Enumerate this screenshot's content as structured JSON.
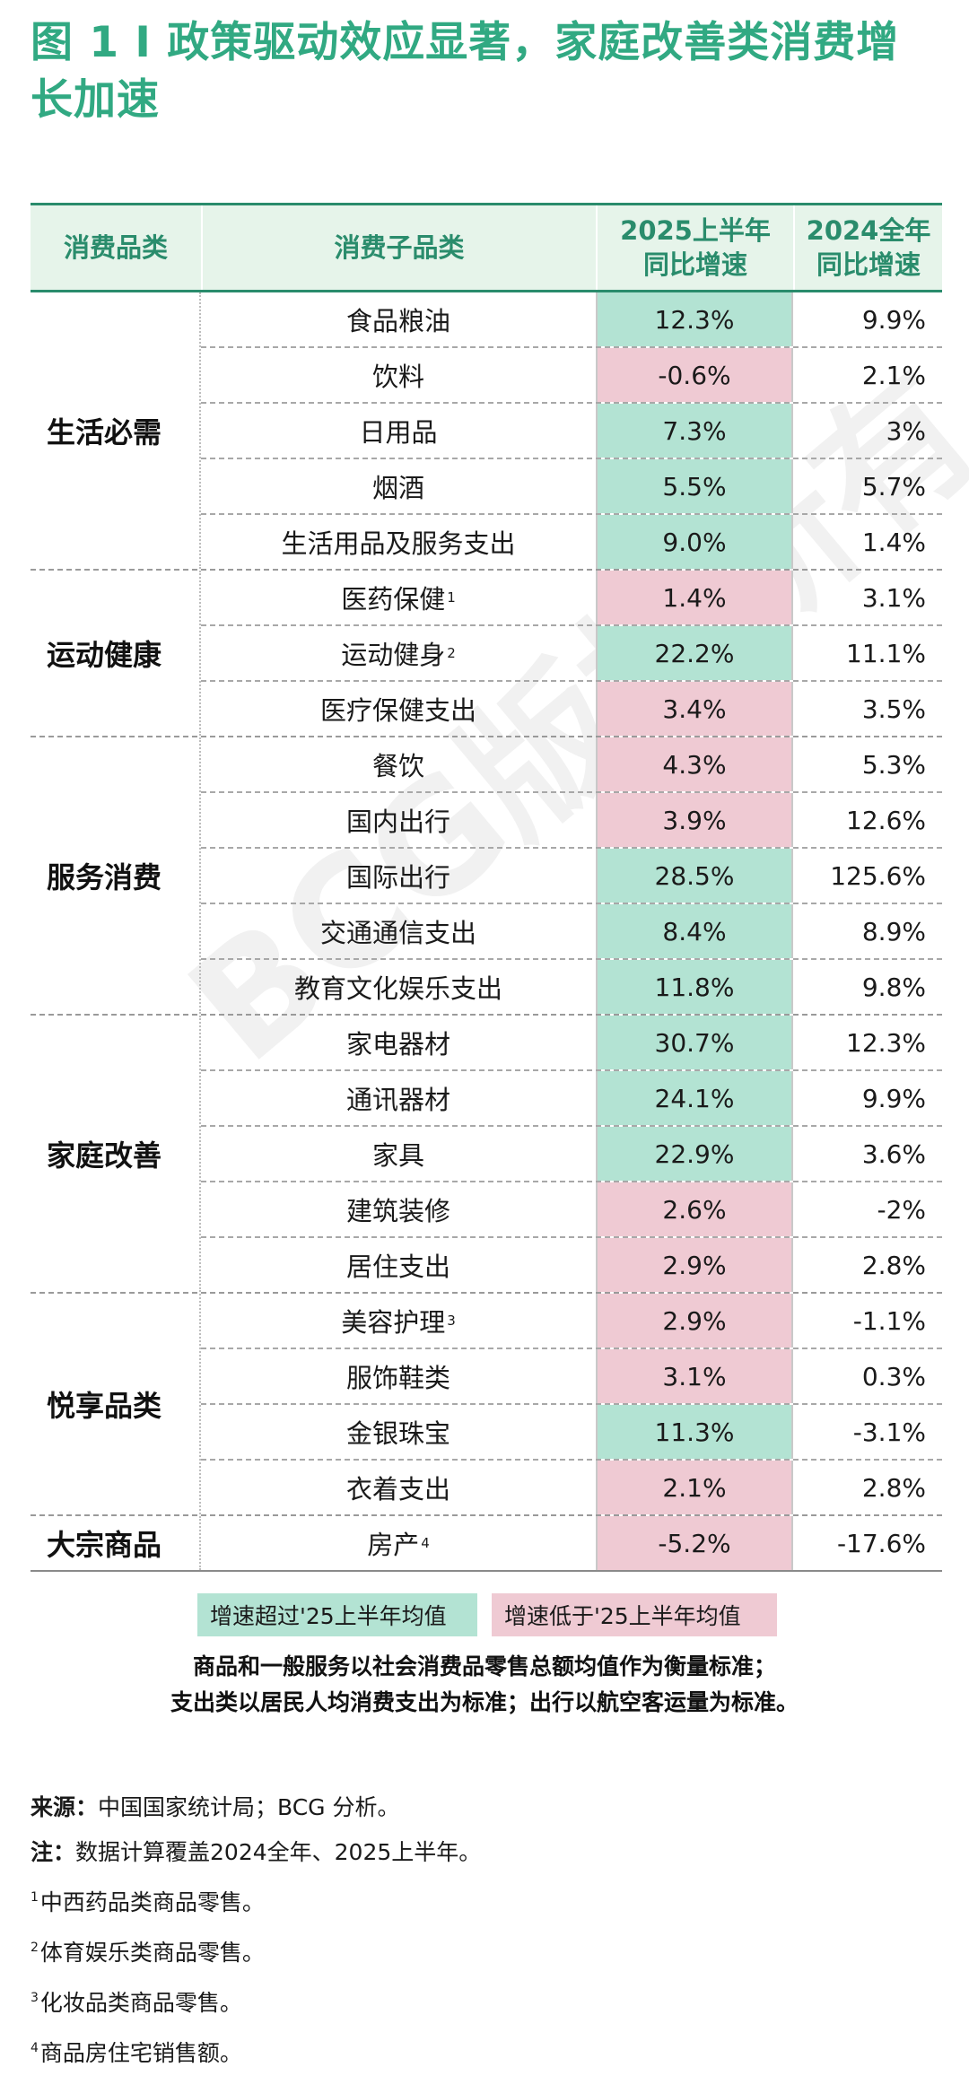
{
  "title": "图 1 I 政策驱动效应显著，家庭改善类消费增长加速",
  "watermark": "BCG版权所有",
  "columns": {
    "category": "消费品类",
    "subcategory": "消费子品类",
    "h1_2025": "2025上半年同比增速",
    "fy_2024": "2024全年同比增速"
  },
  "colors": {
    "above": "#b3e3d3",
    "below": "#efcad3",
    "accent": "#31a982"
  },
  "groups": [
    {
      "name": "生活必需",
      "rows": [
        {
          "sub": "食品粮油",
          "sup": "",
          "v2025": "12.3%",
          "v2024": "9.9%",
          "status": "above"
        },
        {
          "sub": "饮料",
          "sup": "",
          "v2025": "-0.6%",
          "v2024": "2.1%",
          "status": "below"
        },
        {
          "sub": "日用品",
          "sup": "",
          "v2025": "7.3%",
          "v2024": "3%",
          "status": "above"
        },
        {
          "sub": "烟酒",
          "sup": "",
          "v2025": "5.5%",
          "v2024": "5.7%",
          "status": "above"
        },
        {
          "sub": "生活用品及服务支出",
          "sup": "",
          "v2025": "9.0%",
          "v2024": "1.4%",
          "status": "above"
        }
      ]
    },
    {
      "name": "运动健康",
      "rows": [
        {
          "sub": "医药保健",
          "sup": "1",
          "v2025": "1.4%",
          "v2024": "3.1%",
          "status": "below"
        },
        {
          "sub": "运动健身",
          "sup": "2",
          "v2025": "22.2%",
          "v2024": "11.1%",
          "status": "above"
        },
        {
          "sub": "医疗保健支出",
          "sup": "",
          "v2025": "3.4%",
          "v2024": "3.5%",
          "status": "below"
        }
      ]
    },
    {
      "name": "服务消费",
      "rows": [
        {
          "sub": "餐饮",
          "sup": "",
          "v2025": "4.3%",
          "v2024": "5.3%",
          "status": "below"
        },
        {
          "sub": "国内出行",
          "sup": "",
          "v2025": "3.9%",
          "v2024": "12.6%",
          "status": "below"
        },
        {
          "sub": "国际出行",
          "sup": "",
          "v2025": "28.5%",
          "v2024": "125.6%",
          "status": "above"
        },
        {
          "sub": "交通通信支出",
          "sup": "",
          "v2025": "8.4%",
          "v2024": "8.9%",
          "status": "above"
        },
        {
          "sub": "教育文化娱乐支出",
          "sup": "",
          "v2025": "11.8%",
          "v2024": "9.8%",
          "status": "above"
        }
      ]
    },
    {
      "name": "家庭改善",
      "rows": [
        {
          "sub": "家电器材",
          "sup": "",
          "v2025": "30.7%",
          "v2024": "12.3%",
          "status": "above"
        },
        {
          "sub": "通讯器材",
          "sup": "",
          "v2025": "24.1%",
          "v2024": "9.9%",
          "status": "above"
        },
        {
          "sub": "家具",
          "sup": "",
          "v2025": "22.9%",
          "v2024": "3.6%",
          "status": "above"
        },
        {
          "sub": "建筑装修",
          "sup": "",
          "v2025": "2.6%",
          "v2024": "-2%",
          "status": "below"
        },
        {
          "sub": "居住支出",
          "sup": "",
          "v2025": "2.9%",
          "v2024": "2.8%",
          "status": "below"
        }
      ]
    },
    {
      "name": "悦享品类",
      "rows": [
        {
          "sub": "美容护理",
          "sup": "3",
          "v2025": "2.9%",
          "v2024": "-1.1%",
          "status": "below"
        },
        {
          "sub": "服饰鞋类",
          "sup": "",
          "v2025": "3.1%",
          "v2024": "0.3%",
          "status": "below"
        },
        {
          "sub": "金银珠宝",
          "sup": "",
          "v2025": "11.3%",
          "v2024": "-3.1%",
          "status": "above"
        },
        {
          "sub": "衣着支出",
          "sup": "",
          "v2025": "2.1%",
          "v2024": "2.8%",
          "status": "below"
        }
      ]
    },
    {
      "name": "大宗商品",
      "rows": [
        {
          "sub": "房产",
          "sup": "4",
          "v2025": "-5.2%",
          "v2024": "-17.6%",
          "status": "below"
        }
      ]
    }
  ],
  "legend": {
    "above": "增速超过'25上半年均值",
    "below": "增速低于'25上半年均值"
  },
  "criteria": [
    "商品和一般服务以社会消费品零售总额均值作为衡量标准；",
    "支出类以居民人均消费支出为标准；出行以航空客运量为标准。"
  ],
  "notes": {
    "source_label": "来源：",
    "source_text": "中国国家统计局；BCG 分析。",
    "note_label": "注：",
    "note_text": "数据计算覆盖2024全年、2025上半年。",
    "footnotes": [
      {
        "num": "1",
        "text": "中西药品类商品零售。"
      },
      {
        "num": "2",
        "text": "体育娱乐类商品零售。"
      },
      {
        "num": "3",
        "text": "化妆品类商品零售。"
      },
      {
        "num": "4",
        "text": "商品房住宅销售额。"
      }
    ]
  }
}
